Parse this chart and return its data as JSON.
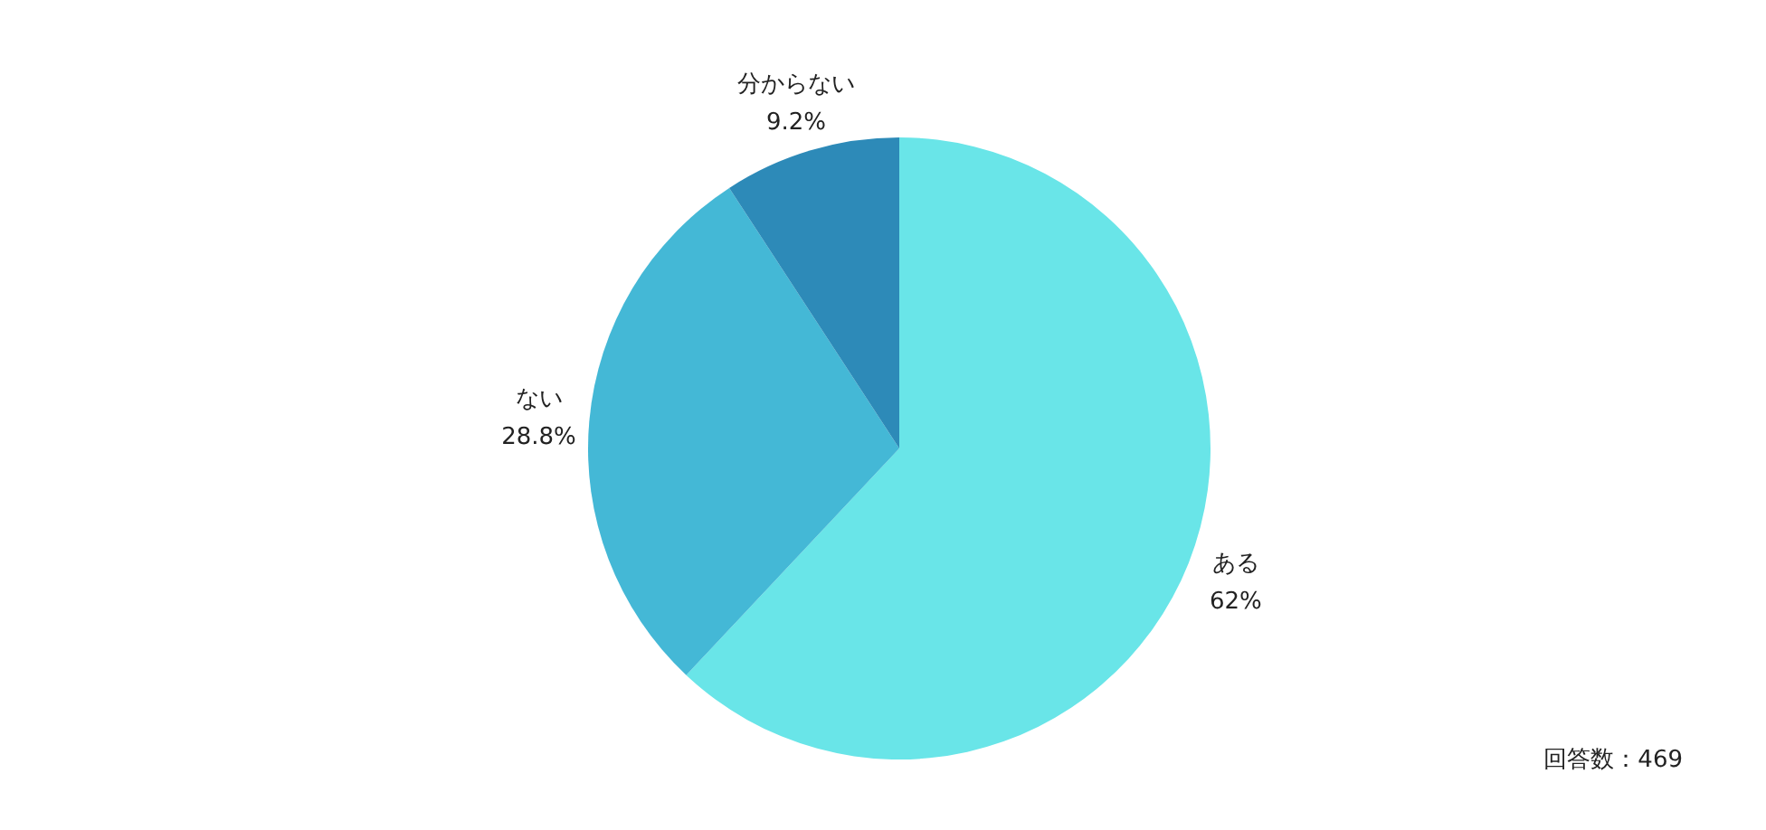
{
  "chart_data": {
    "type": "pie",
    "categories": [
      "ある",
      "ない",
      "分からない"
    ],
    "values": [
      62,
      28.8,
      9.2
    ],
    "value_labels": [
      "62%",
      "28.8%",
      "9.2%"
    ],
    "colors": [
      "#69e5e8",
      "#44b8d6",
      "#2d8ab8"
    ],
    "annotations": [
      "回答数：469"
    ]
  }
}
